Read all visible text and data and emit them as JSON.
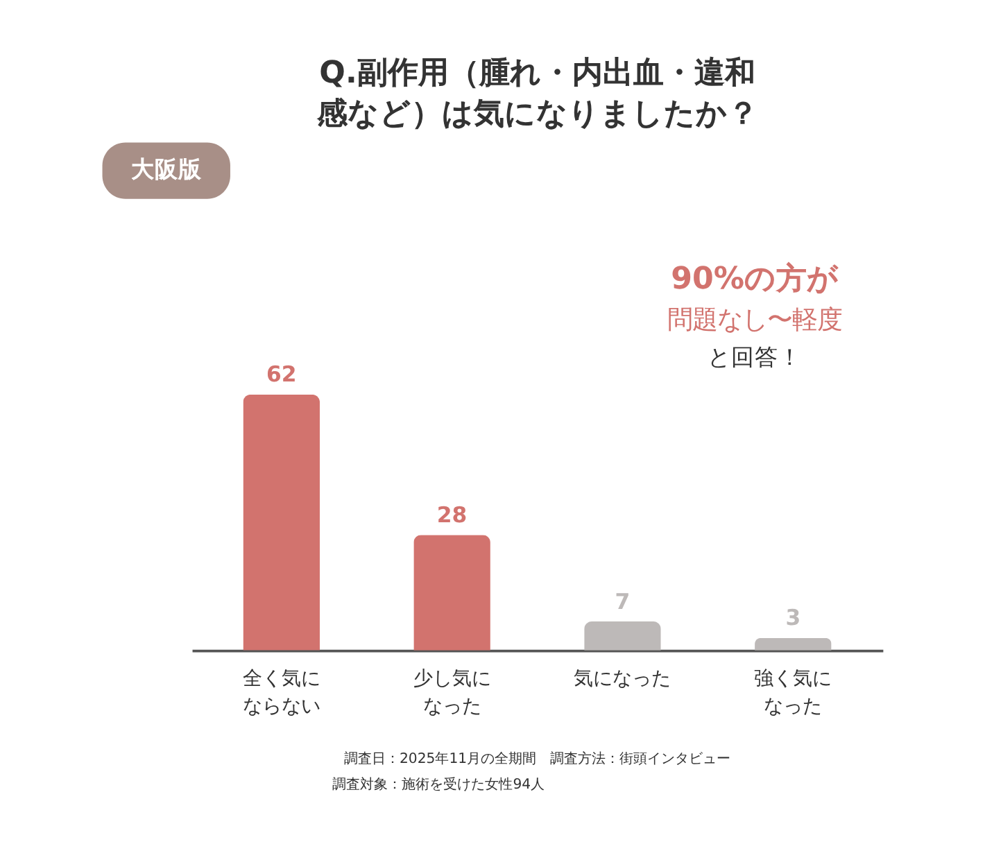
{
  "chart_data": {
    "type": "bar",
    "title": "Q.副作用（腫れ・内出血・違和感など）は気になりましたか？",
    "categories": [
      "全く気にならない",
      "少し気になった",
      "気になった",
      "強く気になった"
    ],
    "values": [
      62,
      28,
      7,
      3
    ],
    "colors": [
      "#d2736e",
      "#d2736e",
      "#bdb9b8",
      "#bdb9b8"
    ],
    "data_labels": true,
    "annotations": [
      "大阪版",
      "90%の方が",
      "問題なし〜軽度",
      "と回答！",
      "調査日：2025年11月の全期間　調査方法：街頭インタビュー",
      "調査対象：施術を受けた女性94人"
    ]
  }
}
